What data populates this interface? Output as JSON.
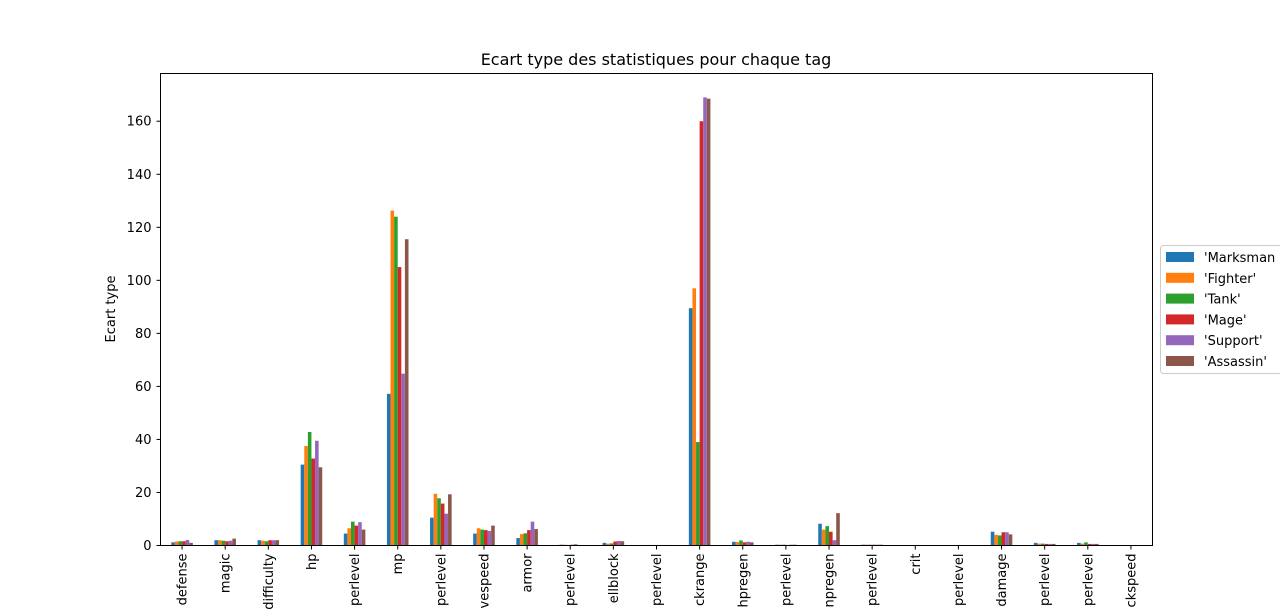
{
  "chart_data": {
    "type": "bar",
    "title": "Ecart type des statistiques pour chaque tag",
    "xlabel": "",
    "ylabel": "Ecart type",
    "ylim": [
      0,
      178
    ],
    "yticks": [
      0,
      20,
      40,
      60,
      80,
      100,
      120,
      140,
      160
    ],
    "grid": false,
    "legend_position": "right",
    "categories": [
      "defense",
      "magic",
      "difficulty",
      "hp",
      "perlevel",
      "mp",
      "perlevel",
      "vespeed",
      "armor",
      "perlevel",
      "ellblock",
      "perlevel",
      "ckrange",
      "hpregen",
      "perlevel",
      "npregen",
      "perlevel",
      "crit",
      "perlevel",
      "damage",
      "perlevel",
      "perlevel",
      "ckspeed"
    ],
    "series": [
      {
        "name": "'Marksman",
        "color": "#1f77b4",
        "values": [
          1.2,
          2.0,
          2.0,
          30.5,
          4.5,
          57.2,
          10.5,
          4.5,
          2.8,
          0.3,
          1.0,
          0.2,
          89.5,
          1.4,
          0.3,
          8.2,
          0.3,
          0,
          0,
          5.2,
          1.0,
          1.0,
          0
        ]
      },
      {
        "name": "'Fighter'",
        "color": "#ff7f0e",
        "values": [
          1.5,
          2.0,
          1.8,
          37.5,
          6.5,
          126.3,
          19.5,
          6.5,
          4.3,
          0.3,
          0.7,
          0.2,
          97.0,
          1.3,
          0.3,
          6.0,
          0.3,
          0,
          0,
          4.0,
          0.7,
          0.7,
          0
        ]
      },
      {
        "name": "'Tank'",
        "color": "#2ca02c",
        "values": [
          1.6,
          1.8,
          1.6,
          42.8,
          9.0,
          124.0,
          17.8,
          6.0,
          4.6,
          0.2,
          0.8,
          0.2,
          39.0,
          1.9,
          0.3,
          7.3,
          0.3,
          0,
          0,
          3.8,
          0.7,
          1.2,
          0
        ]
      },
      {
        "name": "'Mage'",
        "color": "#d62728",
        "values": [
          1.6,
          1.6,
          2.0,
          32.8,
          7.5,
          105.0,
          15.8,
          5.8,
          5.8,
          0.3,
          1.5,
          0.2,
          160.0,
          1.2,
          0.2,
          5.2,
          0.3,
          0,
          0,
          5.0,
          0.6,
          0.6,
          0
        ]
      },
      {
        "name": "'Support'",
        "color": "#9467bd",
        "values": [
          2.1,
          1.8,
          2.0,
          39.5,
          8.8,
          64.8,
          12.0,
          5.5,
          9.0,
          0.5,
          1.7,
          0.2,
          169.0,
          1.4,
          0.3,
          2.0,
          0.3,
          0,
          0,
          5.0,
          0.6,
          0.6,
          0
        ]
      },
      {
        "name": "'Assassin'",
        "color": "#8c564b",
        "values": [
          1.0,
          2.6,
          2.0,
          29.5,
          6.0,
          115.5,
          19.3,
          7.5,
          6.2,
          0.2,
          1.6,
          0.2,
          168.5,
          1.2,
          0.3,
          12.2,
          0.3,
          0,
          0,
          4.2,
          0.6,
          0.6,
          0
        ]
      }
    ]
  }
}
